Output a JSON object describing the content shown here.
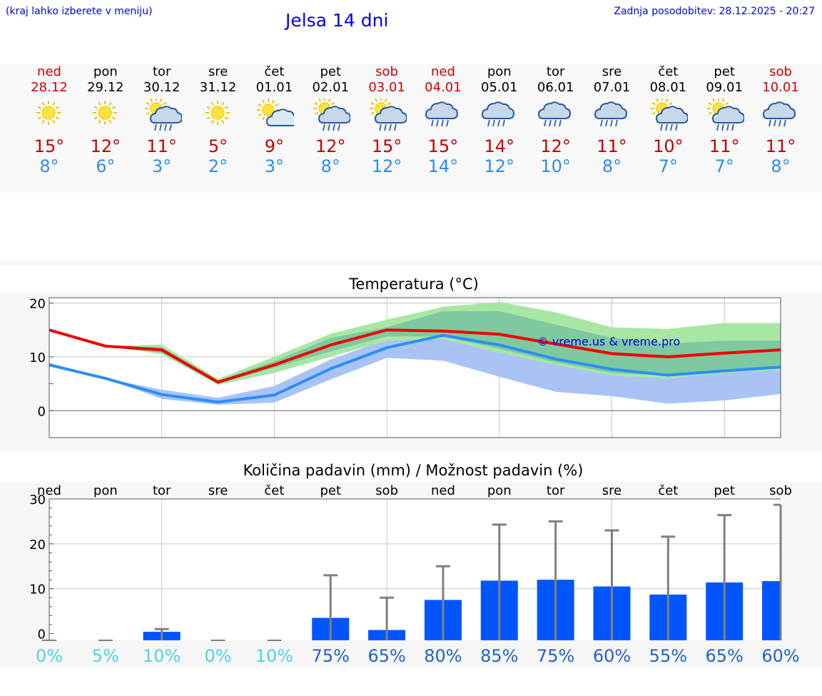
{
  "header": {
    "hint": "(kraj lahko izberete v meniju)",
    "title": "Jelsa 14 dni",
    "updated": "Zadnja posodobitev: 28.12.2025 - 20:27"
  },
  "days": [
    {
      "name": "ned",
      "date": "28.12",
      "weekend": true,
      "icon": "sun-icon",
      "high": "15°",
      "low": "8°"
    },
    {
      "name": "pon",
      "date": "29.12",
      "weekend": false,
      "icon": "sun-icon",
      "high": "12°",
      "low": "6°"
    },
    {
      "name": "tor",
      "date": "30.12",
      "weekend": false,
      "icon": "sun-cloud-rain-icon",
      "high": "11°",
      "low": "3°"
    },
    {
      "name": "sre",
      "date": "31.12",
      "weekend": false,
      "icon": "sun-icon",
      "high": "5°",
      "low": "2°"
    },
    {
      "name": "čet",
      "date": "01.01",
      "weekend": false,
      "icon": "sun-cloud-icon",
      "high": "9°",
      "low": "3°"
    },
    {
      "name": "pet",
      "date": "02.01",
      "weekend": false,
      "icon": "sun-cloud-rain-icon",
      "high": "12°",
      "low": "8°"
    },
    {
      "name": "sob",
      "date": "03.01",
      "weekend": true,
      "icon": "sun-cloud-rain-icon",
      "high": "15°",
      "low": "12°"
    },
    {
      "name": "ned",
      "date": "04.01",
      "weekend": true,
      "icon": "cloud-rain-icon",
      "high": "15°",
      "low": "14°"
    },
    {
      "name": "pon",
      "date": "05.01",
      "weekend": false,
      "icon": "cloud-rain-icon",
      "high": "14°",
      "low": "12°"
    },
    {
      "name": "tor",
      "date": "06.01",
      "weekend": false,
      "icon": "cloud-rain-icon",
      "high": "12°",
      "low": "10°"
    },
    {
      "name": "sre",
      "date": "07.01",
      "weekend": false,
      "icon": "cloud-rain-icon",
      "high": "11°",
      "low": "8°"
    },
    {
      "name": "čet",
      "date": "08.01",
      "weekend": false,
      "icon": "sun-cloud-rain-icon",
      "high": "10°",
      "low": "7°"
    },
    {
      "name": "pet",
      "date": "09.01",
      "weekend": false,
      "icon": "sun-cloud-rain-icon",
      "high": "11°",
      "low": "7°"
    },
    {
      "name": "sob",
      "date": "10.01",
      "weekend": true,
      "icon": "cloud-rain-icon",
      "high": "11°",
      "low": "8°"
    }
  ],
  "colors": {
    "weekend": "#d00000",
    "high": "#c40000",
    "low": "#2f8de6",
    "max_line": "#ee0000",
    "min_line": "#2b8ef7",
    "max_band_outer": "#a8e6a4",
    "max_band_inner": "#7ec9a0",
    "min_band": "#a9c4f4",
    "bar": "#0055ff",
    "whisker": "#808080",
    "prob_low": "#4fd1e6",
    "prob_high": "#1f63c3"
  },
  "chart_data": [
    {
      "type": "line",
      "title": "Temperatura (°C)",
      "ylim": [
        -5,
        21
      ],
      "yticks": [
        0,
        10,
        20
      ],
      "grid": true,
      "watermark": "© vreme.us & vreme.pro",
      "x": [
        "28.12",
        "29.12",
        "30.12",
        "31.12",
        "01.01",
        "02.01",
        "03.01",
        "04.01",
        "05.01",
        "06.01",
        "07.01",
        "08.01",
        "09.01",
        "10.01"
      ],
      "series": [
        {
          "name": "max",
          "values": [
            15,
            12,
            11.3,
            5.3,
            8.5,
            12.2,
            15.0,
            14.8,
            14.2,
            12.4,
            10.6,
            10.0,
            10.7,
            11.3
          ]
        },
        {
          "name": "min",
          "values": [
            8.5,
            6,
            3,
            1.6,
            2.9,
            7.8,
            11.7,
            14.0,
            12.2,
            9.6,
            7.7,
            6.6,
            7.4,
            8.1
          ]
        }
      ],
      "bands": [
        {
          "name": "max_outer",
          "lower": [
            15,
            12,
            10.5,
            4.8,
            7.0,
            10.0,
            13.0,
            13.3,
            10.8,
            8.5,
            6.5,
            6.0,
            7.0,
            7.5
          ],
          "upper": [
            15,
            12,
            12.3,
            5.9,
            10.0,
            14.3,
            16.9,
            19.3,
            20.2,
            18.3,
            15.5,
            15.2,
            16.3,
            16.3
          ]
        },
        {
          "name": "max_inner",
          "lower": [
            15,
            12,
            10.8,
            5.0,
            8.0,
            11.0,
            13.8,
            13.8,
            11.5,
            9.0,
            7.0,
            6.5,
            7.5,
            8.0
          ],
          "upper": [
            15,
            12,
            11.8,
            5.6,
            9.2,
            13.5,
            15.5,
            18.5,
            18.5,
            16.0,
            13.5,
            12.5,
            13.0,
            13.0
          ]
        },
        {
          "name": "min",
          "lower": [
            8.3,
            6,
            2.2,
            1.1,
            1.5,
            5.8,
            9.8,
            9.3,
            6.3,
            3.5,
            2.7,
            1.3,
            1.9,
            3.1
          ],
          "upper": [
            8.9,
            6,
            3.9,
            2.4,
            4.6,
            9.5,
            13.3,
            14.4,
            12.7,
            10.0,
            8.7,
            8.2,
            8.7,
            9.2
          ]
        }
      ]
    },
    {
      "type": "bar",
      "title": "Količina padavin (mm) / Možnost padavin (%)",
      "ylim": [
        -1.5,
        30
      ],
      "yticks": [
        0,
        10,
        20,
        30
      ],
      "grid": true,
      "categories": [
        "ned",
        "pon",
        "tor",
        "sre",
        "čet",
        "pet",
        "sob",
        "ned",
        "pon",
        "tor",
        "sre",
        "čet",
        "pet",
        "sob"
      ],
      "values": [
        0,
        0,
        0.4,
        0,
        0,
        3.5,
        0.8,
        7.5,
        11.8,
        12.0,
        10.5,
        8.7,
        11.4,
        11.7
      ],
      "error_high": [
        0,
        0,
        1,
        0,
        0,
        13,
        8,
        15,
        24.3,
        25.0,
        23.0,
        21.6,
        26.4,
        28.7
      ],
      "probability": [
        "0%",
        "5%",
        "10%",
        "0%",
        "10%",
        "75%",
        "65%",
        "80%",
        "85%",
        "75%",
        "60%",
        "55%",
        "65%",
        "60%"
      ]
    }
  ]
}
